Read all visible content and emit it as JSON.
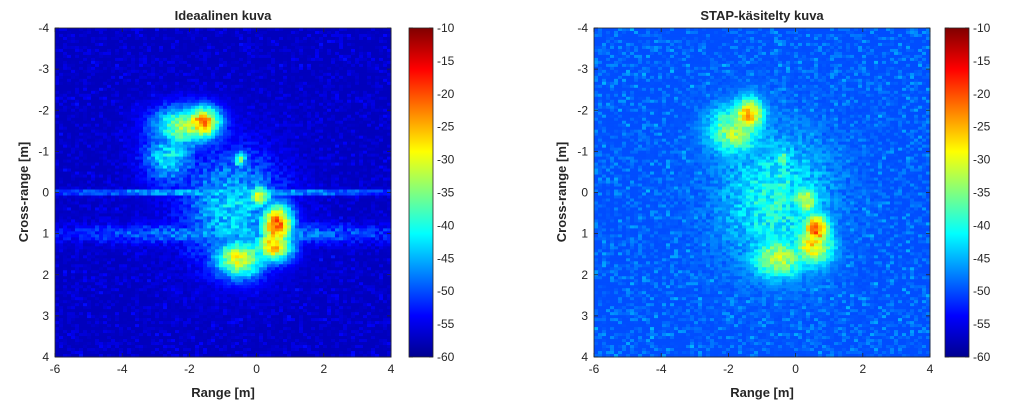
{
  "figure": {
    "panels": [
      {
        "title": "Ideaalinen kuva",
        "xlabel": "Range [m]",
        "ylabel": "Cross-range [m]"
      },
      {
        "title": "STAP-käsitelty kuva",
        "xlabel": "Range [m]",
        "ylabel": "Cross-range [m]"
      }
    ]
  },
  "chart_data": [
    {
      "type": "heatmap",
      "title": "Ideaalinen kuva",
      "xlabel": "Range [m]",
      "ylabel": "Cross-range [m]",
      "xlim": [
        -6,
        4
      ],
      "ylim": [
        -4,
        4
      ],
      "y_reversed": true,
      "xticks": [
        -6,
        -4,
        -2,
        0,
        2,
        4
      ],
      "yticks": [
        -4,
        -3,
        -2,
        -1,
        0,
        1,
        2,
        3,
        4
      ],
      "colorbar": {
        "colormap": "jet",
        "clim": [
          -60,
          -10
        ],
        "ticks": [
          -10,
          -15,
          -20,
          -25,
          -30,
          -35,
          -40,
          -45,
          -50,
          -55,
          -60
        ]
      },
      "background_level": -57,
      "noise_spread": 3,
      "features": [
        {
          "x": -1.6,
          "y": -1.7,
          "rx": 0.55,
          "ry": 0.4,
          "peak": -22
        },
        {
          "x": -2.1,
          "y": -1.6,
          "rx": 1.0,
          "ry": 0.5,
          "peak": -33
        },
        {
          "x": -0.5,
          "y": -0.8,
          "rx": 0.2,
          "ry": 0.2,
          "peak": -33
        },
        {
          "x": 0.1,
          "y": 0.1,
          "rx": 0.35,
          "ry": 0.3,
          "peak": -30
        },
        {
          "x": 0.6,
          "y": 0.8,
          "rx": 0.5,
          "ry": 0.55,
          "peak": -20
        },
        {
          "x": 0.5,
          "y": 1.3,
          "rx": 0.6,
          "ry": 0.4,
          "peak": -25
        },
        {
          "x": -0.5,
          "y": 1.6,
          "rx": 0.8,
          "ry": 0.5,
          "peak": -30
        },
        {
          "x": -2.6,
          "y": -0.9,
          "rx": 0.8,
          "ry": 0.7,
          "peak": -42
        },
        {
          "x": -0.7,
          "y": 0.4,
          "rx": 1.5,
          "ry": 1.4,
          "peak": -43
        },
        {
          "x": -0.6,
          "y": 1.0,
          "rx": 5.5,
          "ry": 0.25,
          "peak": -47
        },
        {
          "x": -1.0,
          "y": 0.0,
          "rx": 5.5,
          "ry": 0.07,
          "peak": -42
        }
      ]
    },
    {
      "type": "heatmap",
      "title": "STAP-käsitelty kuva",
      "xlabel": "Range [m]",
      "ylabel": "Cross-range [m]",
      "xlim": [
        -6,
        4
      ],
      "ylim": [
        -4,
        4
      ],
      "y_reversed": true,
      "xticks": [
        -6,
        -4,
        -2,
        0,
        2,
        4
      ],
      "yticks": [
        -4,
        -3,
        -2,
        -1,
        0,
        1,
        2,
        3,
        4
      ],
      "colorbar": {
        "colormap": "jet",
        "clim": [
          -60,
          -10
        ],
        "ticks": [
          -10,
          -15,
          -20,
          -25,
          -30,
          -35,
          -40,
          -45,
          -50,
          -55,
          -60
        ]
      },
      "background_level": -50,
      "noise_spread": 4,
      "features": [
        {
          "x": -1.4,
          "y": -1.9,
          "rx": 0.45,
          "ry": 0.4,
          "peak": -25
        },
        {
          "x": -1.8,
          "y": -1.5,
          "rx": 0.8,
          "ry": 0.6,
          "peak": -33
        },
        {
          "x": -0.4,
          "y": -0.8,
          "rx": 0.2,
          "ry": 0.2,
          "peak": -33
        },
        {
          "x": 0.3,
          "y": 0.2,
          "rx": 0.4,
          "ry": 0.35,
          "peak": -30
        },
        {
          "x": 0.6,
          "y": 0.9,
          "rx": 0.4,
          "ry": 0.4,
          "peak": -20
        },
        {
          "x": 0.5,
          "y": 1.3,
          "rx": 0.6,
          "ry": 0.5,
          "peak": -28
        },
        {
          "x": -0.5,
          "y": 1.6,
          "rx": 0.8,
          "ry": 0.5,
          "peak": -32
        },
        {
          "x": -0.6,
          "y": 0.2,
          "rx": 1.6,
          "ry": 1.6,
          "peak": -40
        }
      ]
    }
  ]
}
